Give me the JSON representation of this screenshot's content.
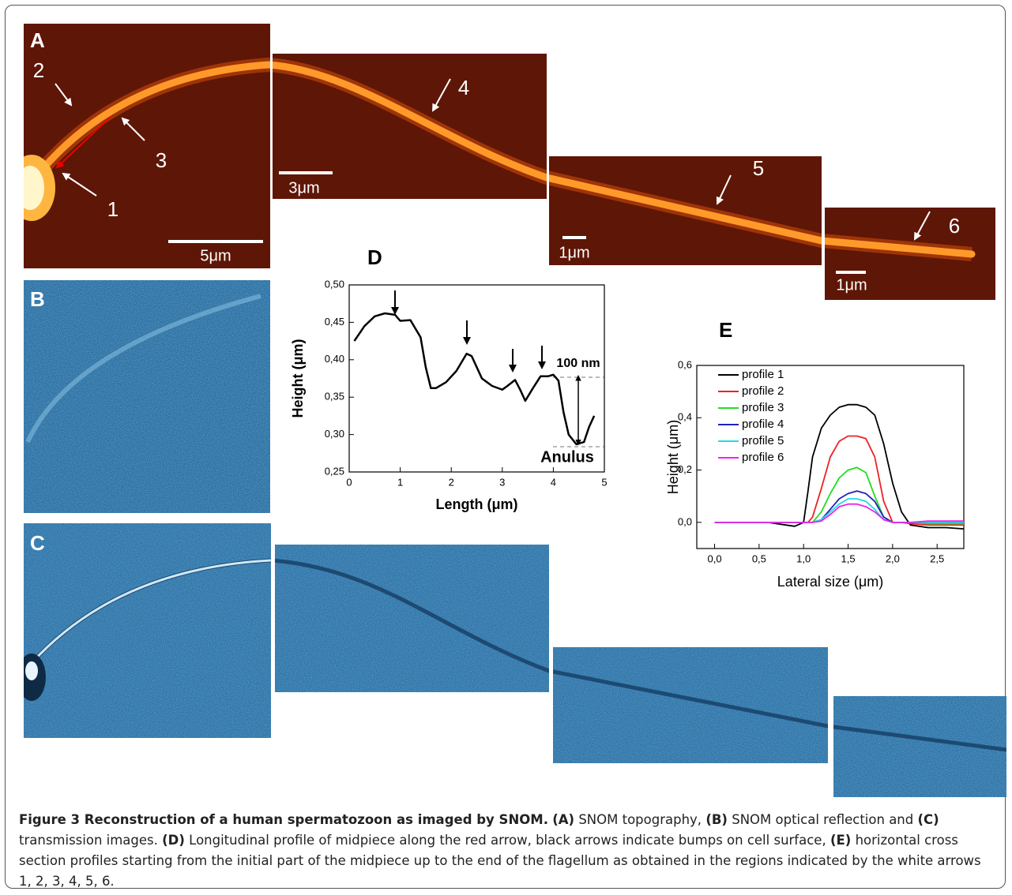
{
  "figure": {
    "panel_labels": [
      "A",
      "B",
      "C"
    ],
    "arrow_labels": [
      "1",
      "2",
      "3",
      "4",
      "5",
      "6"
    ],
    "scale_bars": [
      "5μm",
      "3μm",
      "1μm",
      "1μm"
    ]
  },
  "chart_data": [
    {
      "type": "line",
      "title": "D",
      "x_label": "Length (μm)",
      "y_label": "Height (μm)",
      "x": [
        0.1,
        0.3,
        0.5,
        0.7,
        0.9,
        1.0,
        1.2,
        1.4,
        1.5,
        1.6,
        1.7,
        1.9,
        2.1,
        2.3,
        2.4,
        2.5,
        2.6,
        2.8,
        3.0,
        3.1,
        3.25,
        3.35,
        3.45,
        3.6,
        3.75,
        3.9,
        4.0,
        4.1,
        4.2,
        4.3,
        4.45,
        4.6,
        4.7,
        4.8
      ],
      "values": [
        0.425,
        0.445,
        0.458,
        0.462,
        0.46,
        0.452,
        0.453,
        0.43,
        0.39,
        0.362,
        0.362,
        0.37,
        0.385,
        0.408,
        0.405,
        0.39,
        0.375,
        0.365,
        0.36,
        0.365,
        0.373,
        0.36,
        0.345,
        0.362,
        0.378,
        0.378,
        0.38,
        0.372,
        0.33,
        0.3,
        0.287,
        0.29,
        0.31,
        0.325
      ],
      "color": "#000000",
      "xlim": [
        0,
        5
      ],
      "xticks": [
        0,
        1,
        2,
        3,
        4,
        5
      ],
      "ylim": [
        0.25,
        0.5
      ],
      "yticks": [
        {
          "value": 0.25,
          "label": "0,25"
        },
        {
          "value": 0.3,
          "label": "0,30"
        },
        {
          "value": 0.35,
          "label": "0,35"
        },
        {
          "value": 0.4,
          "label": "0,40"
        },
        {
          "value": 0.45,
          "label": "0,45"
        },
        {
          "value": 0.5,
          "label": "0,50"
        }
      ],
      "annotations": [
        "100 nm",
        "Anulus"
      ]
    },
    {
      "type": "line",
      "title": "E",
      "x_label": "Lateral size (μm)",
      "y_label": "Height (μm)",
      "x": [
        0,
        0.2,
        0.4,
        0.6,
        0.8,
        0.9,
        1.0,
        1.05,
        1.1,
        1.2,
        1.3,
        1.4,
        1.5,
        1.6,
        1.7,
        1.8,
        1.9,
        2.0,
        2.1,
        2.2,
        2.4,
        2.6,
        2.8
      ],
      "series": [
        {
          "name": "profile 1",
          "color": "#000000",
          "values": [
            0,
            0,
            0,
            0,
            -0.01,
            -0.015,
            0,
            0.12,
            0.25,
            0.36,
            0.41,
            0.44,
            0.45,
            0.45,
            0.44,
            0.41,
            0.3,
            0.15,
            0.04,
            -0.01,
            -0.02,
            -0.02,
            -0.025
          ]
        },
        {
          "name": "profile 2",
          "color": "#ee2222",
          "values": [
            0,
            0,
            0,
            0,
            0,
            0,
            0,
            0,
            0.02,
            0.13,
            0.25,
            0.31,
            0.33,
            0.33,
            0.32,
            0.25,
            0.08,
            0,
            0,
            -0.005,
            -0.01,
            -0.01,
            -0.01
          ]
        },
        {
          "name": "profile 3",
          "color": "#22dd22",
          "values": [
            0,
            0,
            0,
            0,
            0,
            0,
            0,
            0,
            0,
            0.04,
            0.11,
            0.17,
            0.2,
            0.21,
            0.19,
            0.1,
            0.02,
            0,
            0,
            0,
            -0.005,
            -0.005,
            -0.005
          ]
        },
        {
          "name": "profile 4",
          "color": "#2222bb",
          "values": [
            0,
            0,
            0,
            0,
            0,
            0,
            0,
            0,
            0,
            0.01,
            0.05,
            0.09,
            0.11,
            0.12,
            0.11,
            0.08,
            0.02,
            0,
            0,
            0,
            0,
            0,
            0
          ]
        },
        {
          "name": "profile 5",
          "color": "#22dddd",
          "values": [
            0,
            0,
            0,
            0,
            0,
            0,
            0,
            0,
            0,
            0.01,
            0.04,
            0.07,
            0.09,
            0.09,
            0.08,
            0.05,
            0.01,
            0,
            0,
            0,
            0,
            0,
            0
          ]
        },
        {
          "name": "profile 6",
          "color": "#ee22ee",
          "values": [
            0,
            0,
            0,
            0,
            0,
            0,
            0,
            0,
            0,
            0.005,
            0.03,
            0.06,
            0.07,
            0.07,
            0.06,
            0.04,
            0.01,
            0,
            0,
            0,
            0.005,
            0.005,
            0.005
          ]
        }
      ],
      "xlim": [
        -0.2,
        2.8
      ],
      "xticks": [
        {
          "value": 0,
          "label": "0,0"
        },
        {
          "value": 0.5,
          "label": "0,5"
        },
        {
          "value": 1,
          "label": "1,0"
        },
        {
          "value": 1.5,
          "label": "1,5"
        },
        {
          "value": 2,
          "label": "2,0"
        },
        {
          "value": 2.5,
          "label": "2,5"
        }
      ],
      "ylim": [
        -0.1,
        0.6
      ],
      "yticks": [
        {
          "value": 0,
          "label": "0,0"
        },
        {
          "value": 0.2,
          "label": "0,2"
        },
        {
          "value": 0.4,
          "label": "0,4"
        },
        {
          "value": 0.6,
          "label": "0,6"
        }
      ],
      "legend": "upper left"
    }
  ],
  "caption": [
    "Figure 3 Reconstruction of a human spermatozoon as imaged by SNOM.",
    "(A)",
    "SNOM topography,",
    "(B)",
    "SNOM optical reflection and",
    "(C)",
    "transmission images.",
    "(D)",
    "Longitudinal profile of midpiece along the red arrow, black arrows indicate bumps on cell surface,",
    "(E)",
    "horizontal cross section profiles starting from the initial part of the midpiece up to the end of the flagellum as obtained in the regions indicated by the white arrows 1, 2, 3, 4, 5, 6."
  ]
}
